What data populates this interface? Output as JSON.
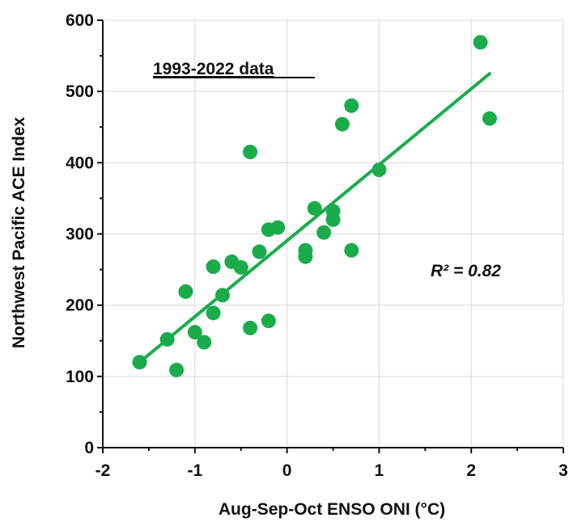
{
  "chart_data": {
    "type": "scatter",
    "title": "",
    "xlabel": "Aug-Sep-Oct ENSO ONI (°C)",
    "ylabel": "Northwest Pacific ACE Index",
    "xlim": [
      -2,
      3
    ],
    "ylim": [
      0,
      600
    ],
    "xticks": [
      -2,
      -1,
      0,
      1,
      2,
      3
    ],
    "yticks": [
      0,
      100,
      200,
      300,
      400,
      500,
      600
    ],
    "grid": true,
    "legend": "none",
    "annotations": {
      "period": "1993-2022 data",
      "r_squared": "R² = 0.82"
    },
    "series": [
      {
        "color": "#1aac4b",
        "x": [
          -1.6,
          -1.3,
          -1.2,
          -1.1,
          -1.0,
          -0.9,
          -0.8,
          -0.8,
          -0.7,
          -0.6,
          -0.5,
          -0.4,
          -0.4,
          -0.3,
          -0.2,
          -0.2,
          -0.1,
          0.2,
          0.2,
          0.3,
          0.4,
          0.5,
          0.5,
          0.6,
          0.7,
          0.7,
          1.0,
          2.1,
          2.2
        ],
        "y": [
          120,
          152,
          109,
          219,
          162,
          148,
          254,
          189,
          214,
          261,
          253,
          168,
          415,
          275,
          178,
          306,
          309,
          277,
          268,
          336,
          302,
          332,
          320,
          454,
          480,
          277,
          390,
          569,
          462
        ]
      }
    ],
    "trendline": {
      "x": [
        -1.6,
        2.2
      ],
      "y": [
        120,
        525
      ]
    }
  }
}
